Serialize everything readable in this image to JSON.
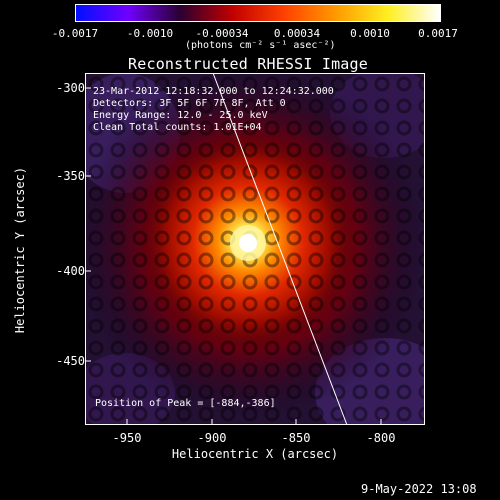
{
  "colorbar": {
    "ticks": [
      "-0.0017",
      "-0.0010",
      "-0.00034",
      "0.00034",
      "0.0010",
      "0.0017"
    ],
    "unit_label": "(photons cm⁻² s⁻¹ asec⁻²)",
    "colors": [
      "#0010ff",
      "#7000ff",
      "#2b0030",
      "#c00000",
      "#ff4000",
      "#ff9a00",
      "#ffef20",
      "#ffffff"
    ]
  },
  "title": "Reconstructed RHESSI Image",
  "axes": {
    "x_label": "Heliocentric X (arcsec)",
    "y_label": "Heliocentric Y (arcsec)",
    "x_ticks": [
      "-950",
      "-900",
      "-850",
      "-800"
    ],
    "y_ticks": [
      "-300",
      "-350",
      "-400",
      "-450"
    ],
    "x_range": [
      -975,
      -787
    ],
    "y_range": [
      -482,
      -292
    ]
  },
  "info": {
    "line1": "23-Mar-2012 12:18:32.000 to 12:24:32.000",
    "line2": "Detectors: 3F 5F 6F 7F 8F, Att 0",
    "line3": "Energy Range: 12.0 - 25.0 keV",
    "line4": "Clean     Total counts: 1.01E+04"
  },
  "peak_text": "Position of Peak = [-884,-386]",
  "footer_timestamp": "9-May-2022 13:08"
}
